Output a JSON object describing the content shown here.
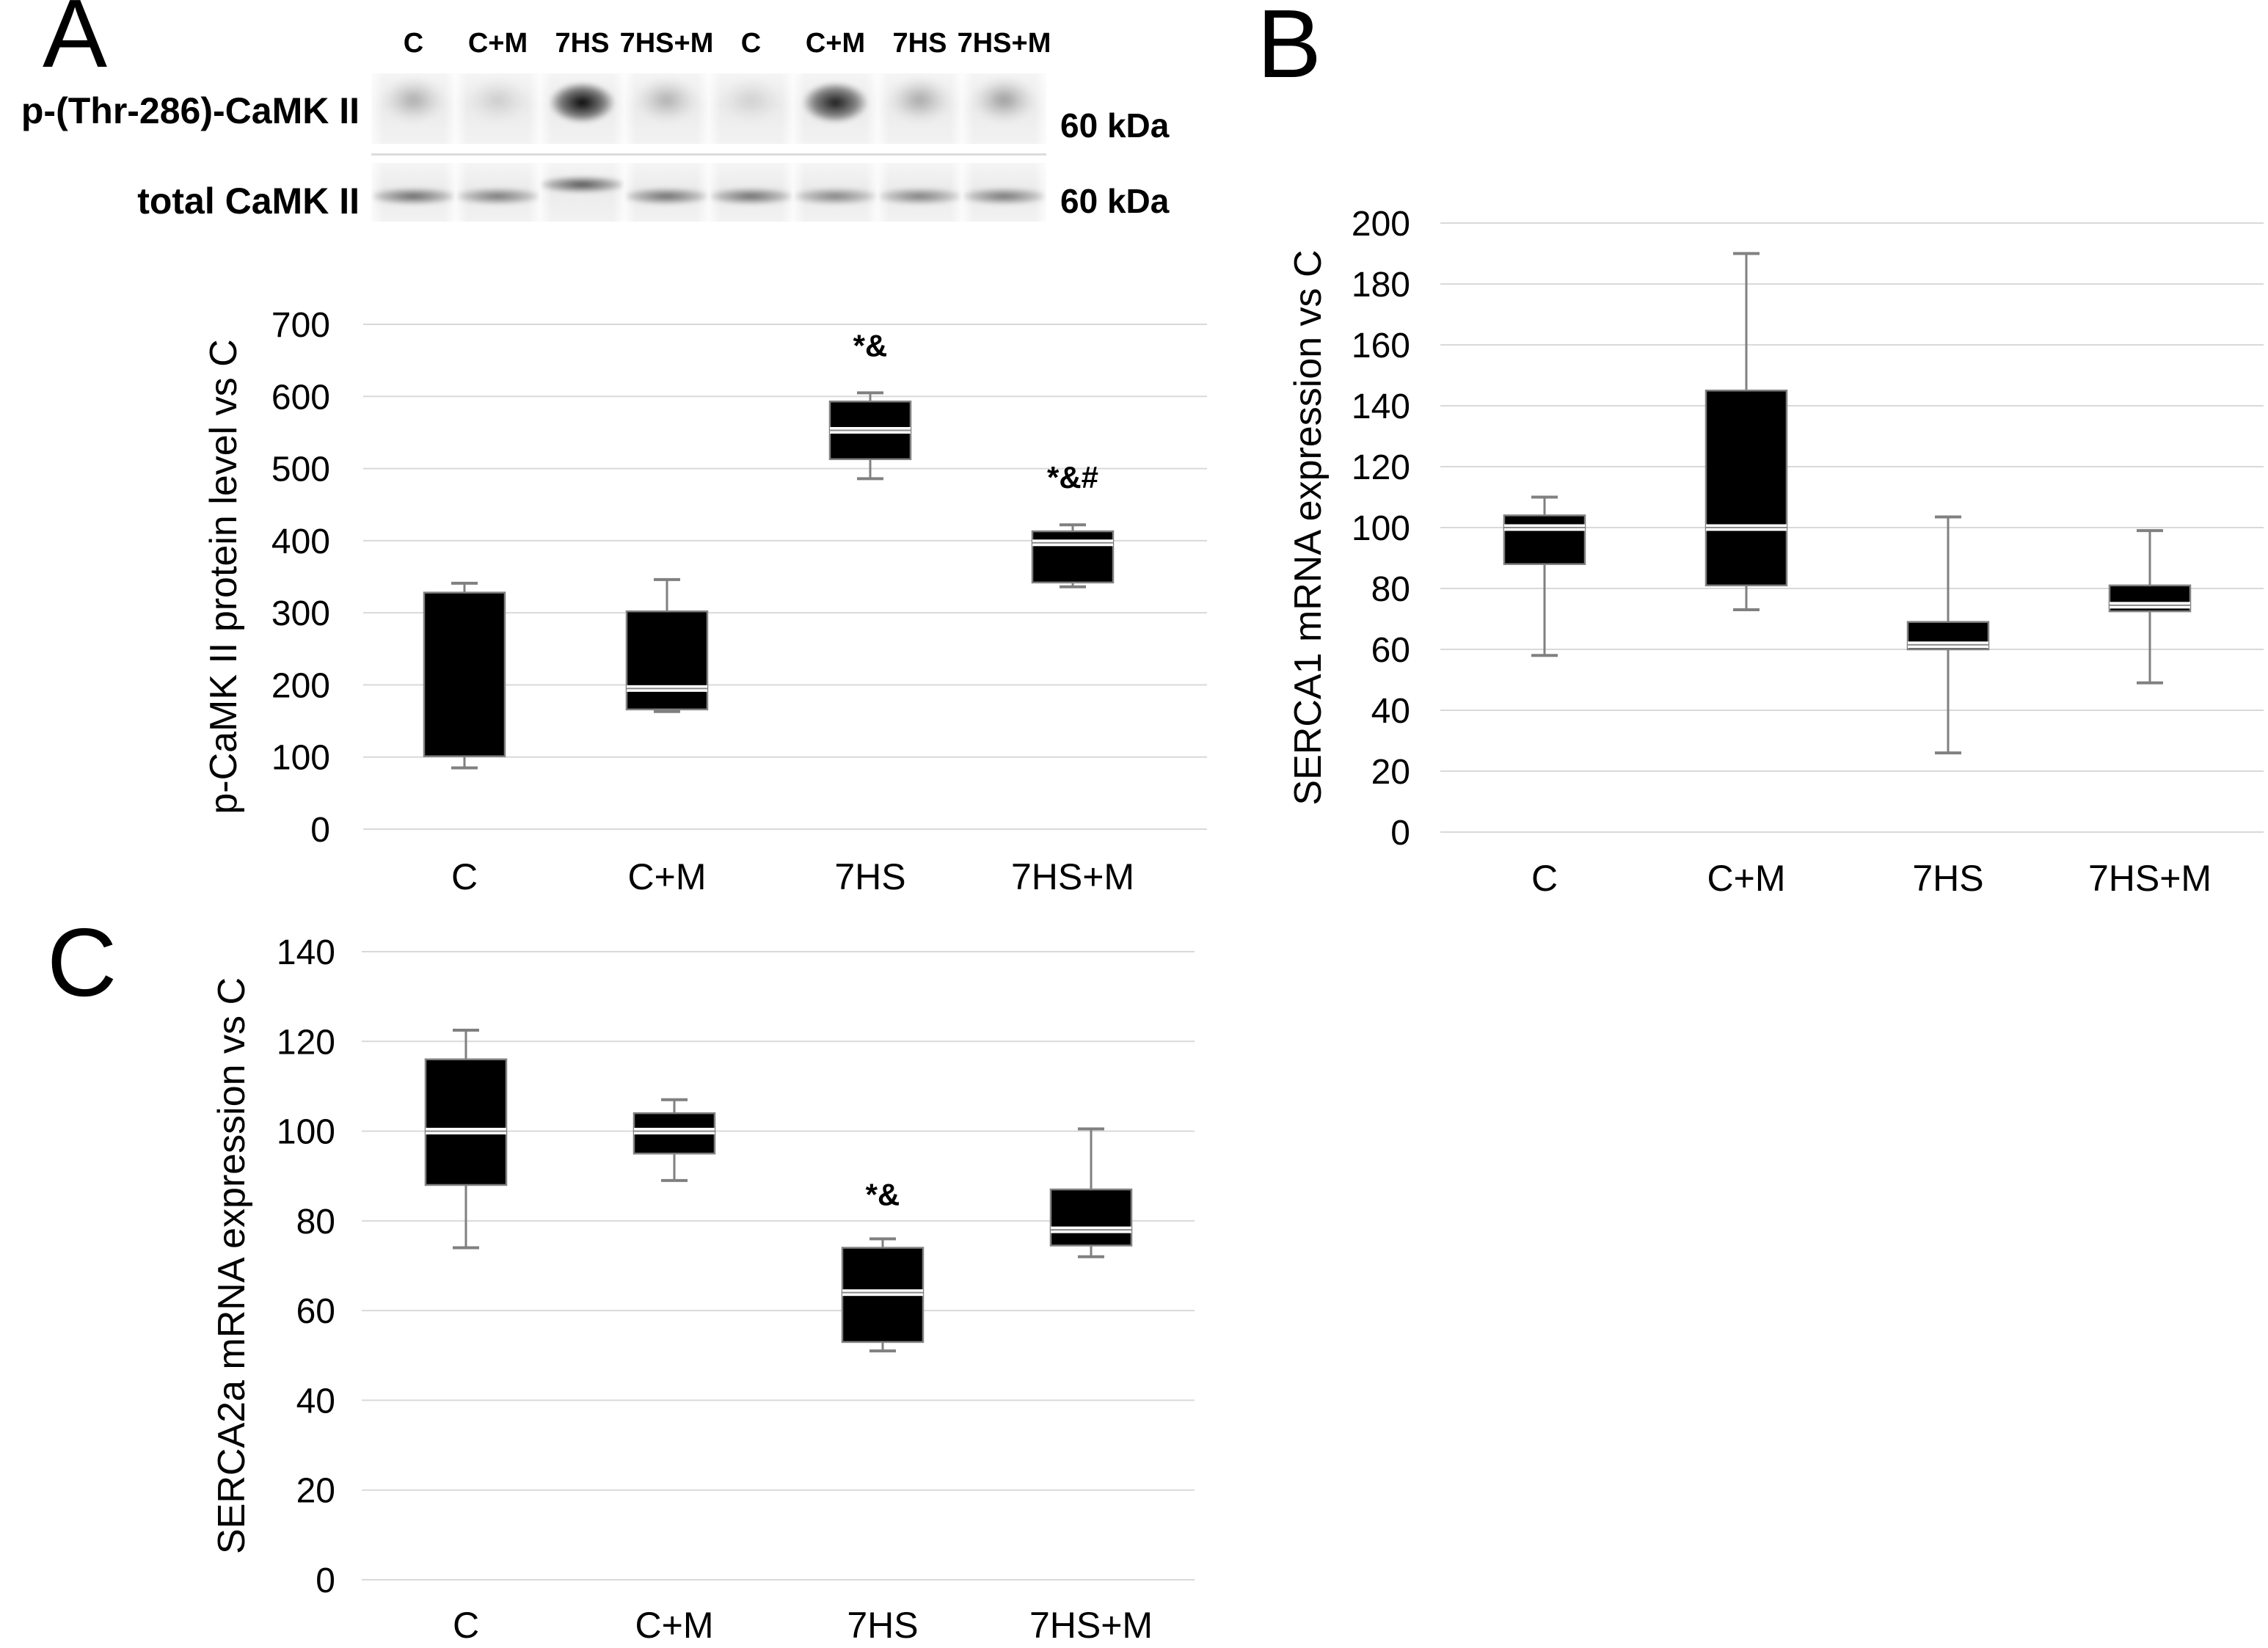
{
  "figure": {
    "panels": [
      {
        "id": "A",
        "label": "A"
      },
      {
        "id": "B",
        "label": "B"
      },
      {
        "id": "C",
        "label": "C"
      }
    ]
  },
  "blot": {
    "lane_labels": [
      "C",
      "C+M",
      "7HS",
      "7HS+M",
      "C",
      "C+M",
      "7HS",
      "7HS+M"
    ],
    "rows": [
      {
        "label": "p-(Thr-286)-CaMK II",
        "weight_label": "60 kDa",
        "bands": [
          {
            "shape": "smear",
            "intensity": 0.32
          },
          {
            "shape": "smear",
            "intensity": 0.16
          },
          {
            "shape": "blob",
            "intensity": 0.97
          },
          {
            "shape": "smear",
            "intensity": 0.3
          },
          {
            "shape": "smear",
            "intensity": 0.14
          },
          {
            "shape": "blob",
            "intensity": 0.88
          },
          {
            "shape": "smear",
            "intensity": 0.34
          },
          {
            "shape": "smear",
            "intensity": 0.4
          }
        ]
      },
      {
        "label": "total CaMK II",
        "weight_label": "60 kDa",
        "bands": [
          {
            "shape": "band",
            "intensity": 0.62
          },
          {
            "shape": "band",
            "intensity": 0.55
          },
          {
            "shape": "band",
            "intensity": 0.72,
            "raised": true
          },
          {
            "shape": "band",
            "intensity": 0.6
          },
          {
            "shape": "band",
            "intensity": 0.6
          },
          {
            "shape": "band",
            "intensity": 0.5
          },
          {
            "shape": "band",
            "intensity": 0.52
          },
          {
            "shape": "band",
            "intensity": 0.56
          }
        ]
      }
    ]
  },
  "chart_data": [
    {
      "id": "A",
      "type": "box",
      "title": "",
      "xlabel": "",
      "ylabel": "p-CaMK II protein level vs C",
      "ylim": [
        0,
        700
      ],
      "yticks": [
        0,
        100,
        200,
        300,
        400,
        500,
        600,
        700
      ],
      "grid": true,
      "legend": "none",
      "categories": [
        "C",
        "C+M",
        "7HS",
        "7HS+M"
      ],
      "boxes": [
        {
          "category": "C",
          "whisker_low": 85,
          "q1": 101,
          "median": null,
          "q3": 328,
          "whisker_high": 341,
          "annotation": ""
        },
        {
          "category": "C+M",
          "whisker_low": 163,
          "q1": 166,
          "median": 195,
          "q3": 302,
          "whisker_high": 346,
          "annotation": ""
        },
        {
          "category": "7HS",
          "whisker_low": 486,
          "q1": 513,
          "median": 553,
          "q3": 593,
          "whisker_high": 605,
          "annotation": "*&"
        },
        {
          "category": "7HS+M",
          "whisker_low": 336,
          "q1": 342,
          "median": 397,
          "q3": 413,
          "whisker_high": 422,
          "annotation": "*&#"
        }
      ]
    },
    {
      "id": "B",
      "type": "box",
      "title": "",
      "xlabel": "",
      "ylabel": "SERCA1 mRNA expression vs C",
      "ylim": [
        0,
        200
      ],
      "yticks": [
        0,
        20,
        40,
        60,
        80,
        100,
        120,
        140,
        160,
        180,
        200
      ],
      "grid": true,
      "legend": "none",
      "categories": [
        "C",
        "C+M",
        "7HS",
        "7HS+M"
      ],
      "boxes": [
        {
          "category": "C",
          "whisker_low": 58,
          "q1": 88,
          "median": 100,
          "q3": 104,
          "whisker_high": 110,
          "annotation": ""
        },
        {
          "category": "C+M",
          "whisker_low": 73,
          "q1": 81,
          "median": 100,
          "q3": 145,
          "whisker_high": 190,
          "annotation": ""
        },
        {
          "category": "7HS",
          "whisker_low": 26,
          "q1": 60,
          "median": 61.5,
          "q3": 69,
          "whisker_high": 103.5,
          "annotation": ""
        },
        {
          "category": "7HS+M",
          "whisker_low": 49,
          "q1": 72.5,
          "median": 74.5,
          "q3": 81,
          "whisker_high": 99,
          "annotation": ""
        }
      ]
    },
    {
      "id": "C",
      "type": "box",
      "title": "",
      "xlabel": "",
      "ylabel": "SERCA2a mRNA expression vs C",
      "ylim": [
        0,
        140
      ],
      "yticks": [
        0,
        20,
        40,
        60,
        80,
        100,
        120,
        140
      ],
      "grid": true,
      "legend": "none",
      "categories": [
        "C",
        "C+M",
        "7HS",
        "7HS+M"
      ],
      "boxes": [
        {
          "category": "C",
          "whisker_low": 74,
          "q1": 88,
          "median": 100,
          "q3": 116,
          "whisker_high": 122.5,
          "annotation": ""
        },
        {
          "category": "C+M",
          "whisker_low": 89,
          "q1": 95,
          "median": 100,
          "q3": 104,
          "whisker_high": 107,
          "annotation": ""
        },
        {
          "category": "7HS",
          "whisker_low": 51,
          "q1": 53,
          "median": 64,
          "q3": 74,
          "whisker_high": 76,
          "annotation": "*&"
        },
        {
          "category": "7HS+M",
          "whisker_low": 72,
          "q1": 74.5,
          "median": 78,
          "q3": 87,
          "whisker_high": 100.5,
          "annotation": ""
        }
      ]
    }
  ],
  "style": {
    "box_fill": "#000000",
    "box_stroke": "#808080",
    "whisker_color": "#808080",
    "median_color": "#ffffff",
    "gridline_color": "#d9d9d9"
  }
}
